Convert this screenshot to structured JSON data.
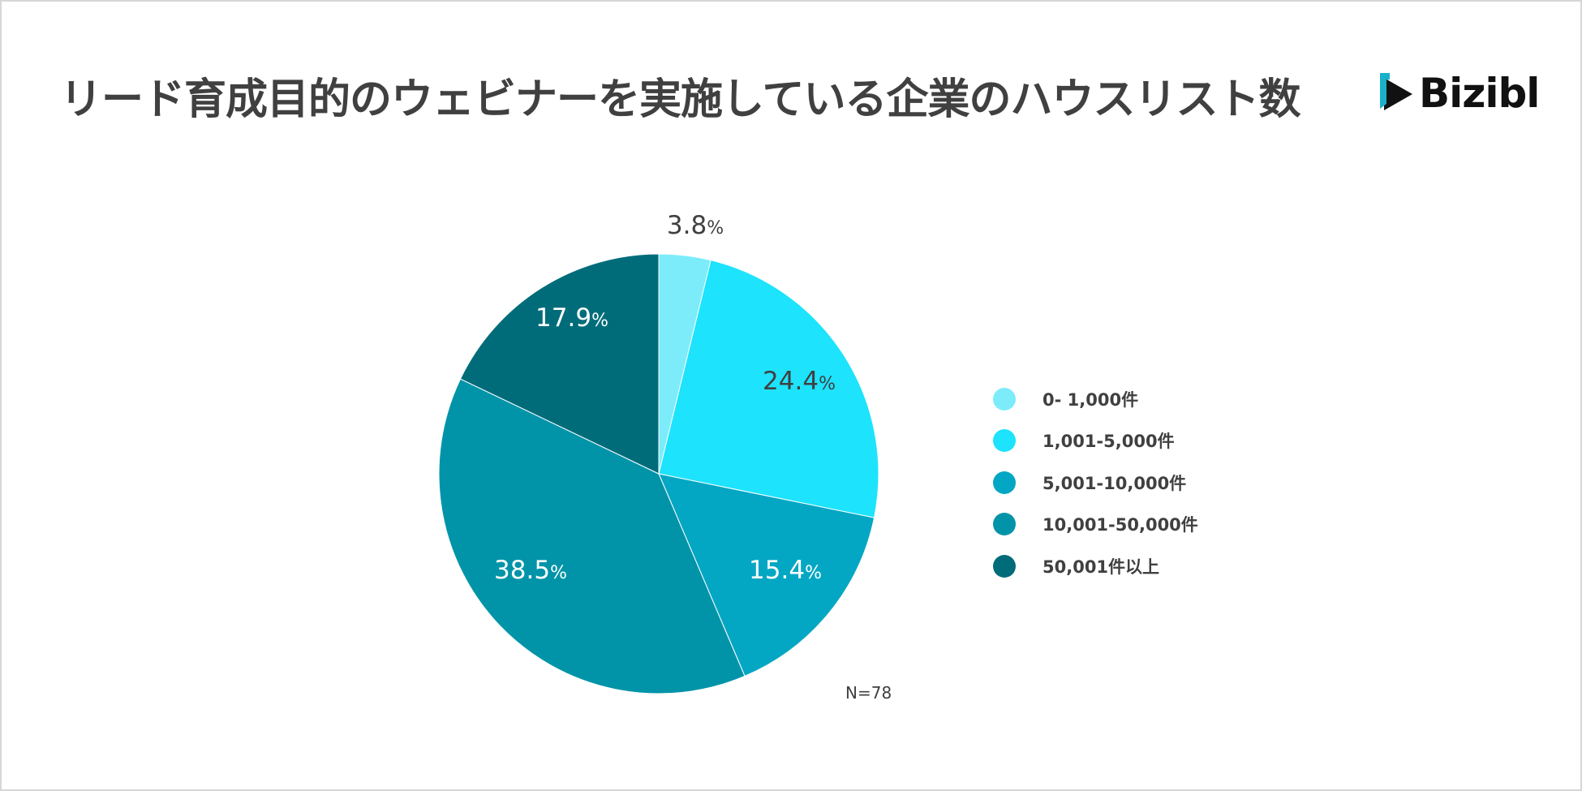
{
  "title": "リード育成目的のウェビナーを実施している企業のハウスリスト数",
  "logo": {
    "text": "Bizibl",
    "icon": "play-icon",
    "accent": "#1ab0c9"
  },
  "note": "N=78",
  "chart_data": {
    "type": "pie",
    "title": "リード育成目的のウェビナーを実施している企業のハウスリスト数",
    "categories": [
      "0- 1,000件",
      "1,001-5,000件",
      "5,001-10,000件",
      "10,001-50,000件",
      "50,001件以上"
    ],
    "values": [
      3.8,
      24.4,
      15.4,
      38.5,
      17.9
    ],
    "value_labels": [
      "3.8",
      "24.4",
      "15.4",
      "38.5",
      "17.9"
    ],
    "unit": "%",
    "colors": [
      "#7cecfa",
      "#1de3fd",
      "#04a7c3",
      "#0194a9",
      "#006c7a"
    ],
    "label_colors": [
      "#404040",
      "#404040",
      "#ffffff",
      "#ffffff",
      "#ffffff"
    ],
    "legend_position": "right",
    "start_angle": "12 o'clock",
    "direction": "clockwise"
  }
}
